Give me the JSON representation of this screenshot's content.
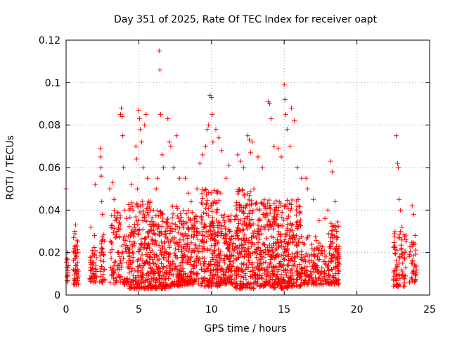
{
  "chart_data": {
    "type": "scatter",
    "title": "Day 351 of 2025, Rate Of TEC Index for receiver oapt",
    "xlabel": "GPS time / hours",
    "ylabel": "ROTI / TECUs",
    "xlim": [
      0,
      25
    ],
    "ylim": [
      0,
      0.12
    ],
    "x_ticks": [
      0,
      5,
      10,
      15,
      20,
      25
    ],
    "x_tick_labels": [
      "0",
      "5",
      "10",
      "15",
      "20",
      "25"
    ],
    "y_ticks": [
      0,
      0.02,
      0.04,
      0.06,
      0.08,
      0.1,
      0.12
    ],
    "y_tick_labels": [
      "0",
      "0.02",
      "0.04",
      "0.06",
      "0.08",
      "0.1",
      "0.12"
    ],
    "grid": true,
    "marker": "+",
    "marker_color": "#ff0000",
    "series": [
      {
        "points": [
          [
            0.0,
            0.05
          ],
          [
            0.05,
            0.017
          ],
          [
            0.08,
            0.013
          ],
          [
            0.1,
            0.009
          ],
          [
            0.12,
            0.02
          ],
          [
            0.5,
            0.012
          ],
          [
            0.55,
            0.022
          ],
          [
            0.6,
            0.03
          ],
          [
            0.65,
            0.033
          ],
          [
            0.7,
            0.018
          ],
          [
            0.75,
            0.01
          ],
          [
            0.8,
            0.025
          ],
          [
            1.7,
            0.032
          ],
          [
            1.8,
            0.021
          ],
          [
            1.85,
            0.015
          ],
          [
            1.9,
            0.01
          ],
          [
            1.95,
            0.028
          ],
          [
            2.0,
            0.052
          ],
          [
            2.35,
            0.069
          ],
          [
            2.38,
            0.065
          ],
          [
            2.4,
            0.06
          ],
          [
            2.42,
            0.056
          ],
          [
            2.45,
            0.044
          ],
          [
            2.5,
            0.038
          ],
          [
            2.55,
            0.026
          ],
          [
            2.6,
            0.012
          ],
          [
            3.0,
            0.05
          ],
          [
            3.2,
            0.053
          ],
          [
            3.3,
            0.045
          ],
          [
            3.5,
            0.03
          ],
          [
            3.6,
            0.02
          ],
          [
            3.7,
            0.012
          ],
          [
            3.75,
            0.085
          ],
          [
            3.8,
            0.088
          ],
          [
            3.85,
            0.084
          ],
          [
            3.9,
            0.075
          ],
          [
            3.95,
            0.06
          ],
          [
            4.0,
            0.04
          ],
          [
            4.5,
            0.052
          ],
          [
            4.6,
            0.04
          ],
          [
            4.7,
            0.03
          ],
          [
            4.8,
            0.07
          ],
          [
            4.85,
            0.064
          ],
          [
            4.9,
            0.05
          ],
          [
            5.0,
            0.087
          ],
          [
            5.05,
            0.083
          ],
          [
            5.1,
            0.078
          ],
          [
            5.2,
            0.072
          ],
          [
            5.3,
            0.06
          ],
          [
            5.4,
            0.08
          ],
          [
            5.5,
            0.085
          ],
          [
            5.6,
            0.055
          ],
          [
            5.8,
            0.04
          ],
          [
            6.2,
            0.05
          ],
          [
            6.3,
            0.055
          ],
          [
            6.4,
            0.115
          ],
          [
            6.45,
            0.106
          ],
          [
            6.5,
            0.085
          ],
          [
            6.6,
            0.066
          ],
          [
            6.7,
            0.06
          ],
          [
            7.0,
            0.083
          ],
          [
            7.1,
            0.072
          ],
          [
            7.2,
            0.07
          ],
          [
            7.4,
            0.06
          ],
          [
            7.6,
            0.075
          ],
          [
            7.8,
            0.055
          ],
          [
            8.2,
            0.055
          ],
          [
            8.4,
            0.048
          ],
          [
            8.6,
            0.044
          ],
          [
            9.0,
            0.05
          ],
          [
            9.2,
            0.062
          ],
          [
            9.4,
            0.066
          ],
          [
            9.6,
            0.07
          ],
          [
            9.7,
            0.078
          ],
          [
            9.8,
            0.08
          ],
          [
            9.9,
            0.094
          ],
          [
            10.0,
            0.093
          ],
          [
            10.05,
            0.085
          ],
          [
            10.1,
            0.072
          ],
          [
            10.3,
            0.078
          ],
          [
            10.5,
            0.074
          ],
          [
            10.7,
            0.068
          ],
          [
            11.0,
            0.055
          ],
          [
            11.2,
            0.061
          ],
          [
            11.8,
            0.066
          ],
          [
            12.0,
            0.063
          ],
          [
            12.2,
            0.06
          ],
          [
            12.5,
            0.075
          ],
          [
            12.6,
            0.073
          ],
          [
            12.7,
            0.067
          ],
          [
            12.8,
            0.072
          ],
          [
            13.2,
            0.065
          ],
          [
            13.5,
            0.06
          ],
          [
            13.9,
            0.091
          ],
          [
            14.0,
            0.09
          ],
          [
            14.1,
            0.083
          ],
          [
            14.3,
            0.07
          ],
          [
            14.6,
            0.069
          ],
          [
            14.8,
            0.065
          ],
          [
            15.0,
            0.099
          ],
          [
            15.05,
            0.092
          ],
          [
            15.1,
            0.085
          ],
          [
            15.2,
            0.078
          ],
          [
            15.4,
            0.07
          ],
          [
            15.5,
            0.088
          ],
          [
            15.7,
            0.082
          ],
          [
            15.9,
            0.06
          ],
          [
            16.2,
            0.055
          ],
          [
            16.5,
            0.055
          ],
          [
            16.6,
            0.05
          ],
          [
            17.0,
            0.045
          ],
          [
            17.4,
            0.035
          ],
          [
            17.8,
            0.036
          ],
          [
            18.0,
            0.04
          ],
          [
            18.2,
            0.063
          ],
          [
            18.3,
            0.058
          ],
          [
            18.5,
            0.044
          ],
          [
            18.6,
            0.03
          ],
          [
            18.7,
            0.02
          ],
          [
            22.7,
            0.075
          ],
          [
            22.8,
            0.062
          ],
          [
            22.85,
            0.06
          ],
          [
            22.9,
            0.045
          ],
          [
            23.0,
            0.04
          ],
          [
            23.1,
            0.032
          ],
          [
            23.3,
            0.02
          ],
          [
            23.8,
            0.042
          ],
          [
            23.9,
            0.038
          ],
          [
            24.0,
            0.028
          ]
        ],
        "bands": [
          {
            "x0": 0.0,
            "x1": 0.15,
            "y0": 0.006,
            "y1": 0.018,
            "n": 12
          },
          {
            "x0": 0.5,
            "x1": 0.85,
            "y0": 0.005,
            "y1": 0.032,
            "n": 45
          },
          {
            "x0": 1.6,
            "x1": 2.1,
            "y0": 0.006,
            "y1": 0.028,
            "n": 40
          },
          {
            "x0": 2.3,
            "x1": 2.7,
            "y0": 0.006,
            "y1": 0.03,
            "n": 35
          },
          {
            "x0": 3.0,
            "x1": 4.3,
            "y0": 0.005,
            "y1": 0.04,
            "n": 110
          },
          {
            "x0": 4.3,
            "x1": 5.9,
            "y0": 0.003,
            "y1": 0.045,
            "n": 230
          },
          {
            "x0": 5.9,
            "x1": 6.9,
            "y0": 0.003,
            "y1": 0.04,
            "n": 150
          },
          {
            "x0": 6.9,
            "x1": 8.0,
            "y0": 0.004,
            "y1": 0.042,
            "n": 150
          },
          {
            "x0": 8.0,
            "x1": 9.2,
            "y0": 0.005,
            "y1": 0.04,
            "n": 160
          },
          {
            "x0": 9.2,
            "x1": 10.6,
            "y0": 0.004,
            "y1": 0.05,
            "n": 220
          },
          {
            "x0": 10.6,
            "x1": 11.6,
            "y0": 0.005,
            "y1": 0.038,
            "n": 140
          },
          {
            "x0": 11.6,
            "x1": 13.0,
            "y0": 0.003,
            "y1": 0.05,
            "n": 220
          },
          {
            "x0": 13.0,
            "x1": 14.2,
            "y0": 0.004,
            "y1": 0.045,
            "n": 180
          },
          {
            "x0": 14.2,
            "x1": 15.3,
            "y0": 0.003,
            "y1": 0.045,
            "n": 180
          },
          {
            "x0": 15.3,
            "x1": 16.2,
            "y0": 0.004,
            "y1": 0.045,
            "n": 140
          },
          {
            "x0": 16.2,
            "x1": 17.2,
            "y0": 0.005,
            "y1": 0.028,
            "n": 90
          },
          {
            "x0": 17.2,
            "x1": 18.0,
            "y0": 0.005,
            "y1": 0.025,
            "n": 60
          },
          {
            "x0": 18.0,
            "x1": 18.8,
            "y0": 0.005,
            "y1": 0.035,
            "n": 110
          },
          {
            "x0": 22.5,
            "x1": 23.4,
            "y0": 0.004,
            "y1": 0.03,
            "n": 80
          },
          {
            "x0": 23.6,
            "x1": 24.1,
            "y0": 0.006,
            "y1": 0.026,
            "n": 40
          }
        ]
      }
    ]
  }
}
